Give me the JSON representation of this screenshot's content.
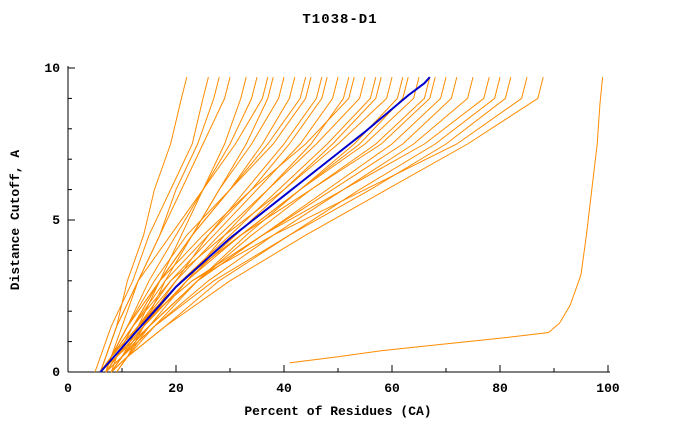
{
  "chart_data": {
    "type": "line",
    "title": "T1038-D1",
    "xlabel": "Percent of Residues (CA)",
    "ylabel": "Distance Cutoff, A",
    "xlim": [
      0,
      100
    ],
    "ylim": [
      0,
      10
    ],
    "grid": "off",
    "legend": "none",
    "x_ticks": {
      "major": [
        0,
        20,
        40,
        60,
        80,
        100
      ],
      "minor": [
        10,
        30,
        50,
        70,
        90
      ]
    },
    "y_ticks": {
      "major": [
        0,
        5,
        10
      ],
      "minor": [
        1,
        2,
        3,
        4,
        6,
        7,
        8,
        9
      ]
    },
    "colors": {
      "model_line": "#ff8c00",
      "reference_line": "#0000cc",
      "axis": "#000000",
      "background": "#ffffff"
    },
    "y_levels": [
      0,
      0.5,
      1.5,
      3,
      4.5,
      6,
      7.5,
      9,
      9.7
    ],
    "model_series_x": [
      [
        6,
        7,
        9,
        11,
        14,
        16,
        19,
        21,
        22
      ],
      [
        7,
        8,
        10,
        13,
        17,
        20,
        24,
        27,
        28
      ],
      [
        6,
        7,
        9,
        13,
        17,
        21,
        25,
        29,
        30
      ],
      [
        8,
        10,
        13,
        17,
        21,
        25,
        29,
        32,
        33
      ],
      [
        7,
        8,
        11,
        15,
        20,
        25,
        30,
        34,
        35
      ],
      [
        6,
        7,
        9,
        13,
        19,
        25,
        31,
        36,
        37
      ],
      [
        9,
        11,
        14,
        18,
        23,
        28,
        33,
        37,
        38
      ],
      [
        7,
        9,
        12,
        17,
        23,
        28,
        34,
        39,
        40
      ],
      [
        8,
        9,
        12,
        17,
        23,
        30,
        36,
        41,
        42
      ],
      [
        6,
        8,
        11,
        17,
        23,
        30,
        37,
        43,
        44
      ],
      [
        7,
        8,
        11,
        16,
        22,
        30,
        38,
        44,
        45
      ],
      [
        8,
        10,
        14,
        20,
        26,
        33,
        40,
        46,
        47
      ],
      [
        6,
        8,
        12,
        18,
        26,
        34,
        41,
        47,
        48
      ],
      [
        7,
        9,
        13,
        19,
        27,
        35,
        43,
        49,
        50
      ],
      [
        9,
        11,
        15,
        22,
        29,
        37,
        45,
        51,
        52
      ],
      [
        7,
        8,
        11,
        17,
        25,
        34,
        44,
        52,
        53
      ],
      [
        6,
        9,
        13,
        20,
        28,
        37,
        46,
        54,
        55
      ],
      [
        8,
        10,
        14,
        21,
        30,
        39,
        48,
        56,
        57
      ],
      [
        7,
        9,
        14,
        22,
        31,
        40,
        49,
        57,
        58
      ],
      [
        6,
        8,
        12,
        19,
        29,
        40,
        50,
        59,
        60
      ],
      [
        8,
        11,
        16,
        24,
        33,
        43,
        53,
        61,
        62
      ],
      [
        7,
        9,
        14,
        22,
        32,
        43,
        54,
        62,
        63
      ],
      [
        6,
        8,
        13,
        21,
        32,
        43,
        55,
        64,
        65
      ],
      [
        8,
        10,
        15,
        24,
        34,
        45,
        57,
        66,
        67
      ],
      [
        7,
        9,
        13,
        21,
        32,
        45,
        58,
        67,
        68
      ],
      [
        6,
        9,
        15,
        24,
        36,
        48,
        60,
        69,
        70
      ],
      [
        8,
        10,
        15,
        24,
        36,
        49,
        62,
        71,
        72
      ],
      [
        7,
        10,
        16,
        26,
        38,
        51,
        64,
        74,
        75
      ],
      [
        6,
        8,
        13,
        23,
        36,
        51,
        66,
        77,
        78
      ],
      [
        8,
        11,
        18,
        28,
        41,
        54,
        68,
        79,
        80
      ],
      [
        7,
        10,
        16,
        27,
        41,
        56,
        70,
        81,
        82
      ],
      [
        6,
        8,
        13,
        23,
        38,
        55,
        72,
        84,
        85
      ],
      [
        8,
        11,
        18,
        30,
        44,
        59,
        74,
        87,
        88
      ],
      [
        5,
        6,
        8,
        12,
        15,
        19,
        23,
        25,
        26
      ]
    ],
    "outlier_series": [
      [
        41,
        0.3
      ],
      [
        50,
        0.5
      ],
      [
        58,
        0.7
      ],
      [
        66,
        0.85
      ],
      [
        74,
        1.0
      ],
      [
        82,
        1.15
      ],
      [
        89,
        1.3
      ],
      [
        91,
        1.6
      ],
      [
        93,
        2.2
      ],
      [
        95,
        3.2
      ],
      [
        96,
        4.5
      ],
      [
        97,
        6.0
      ],
      [
        98,
        7.5
      ],
      [
        98.5,
        8.8
      ],
      [
        99,
        9.7
      ]
    ],
    "reference_series": [
      [
        6,
        0
      ],
      [
        9,
        0.6
      ],
      [
        12,
        1.2
      ],
      [
        16,
        2.0
      ],
      [
        20,
        2.8
      ],
      [
        25,
        3.6
      ],
      [
        30,
        4.4
      ],
      [
        35,
        5.1
      ],
      [
        40,
        5.8
      ],
      [
        45,
        6.5
      ],
      [
        50,
        7.2
      ],
      [
        55,
        7.9
      ],
      [
        59,
        8.5
      ],
      [
        63,
        9.1
      ],
      [
        66,
        9.5
      ],
      [
        67,
        9.7
      ]
    ]
  }
}
